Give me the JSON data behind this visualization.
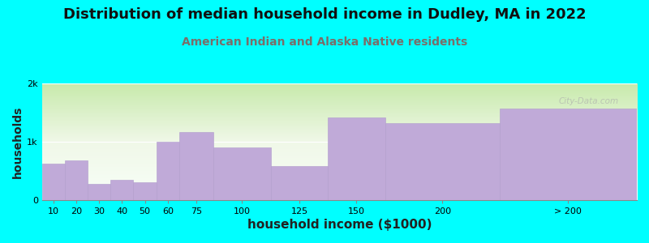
{
  "title": "Distribution of median household income in Dudley, MA in 2022",
  "subtitle": "American Indian and Alaska Native residents",
  "xlabel": "household income ($1000)",
  "ylabel": "households",
  "background_color": "#00ffff",
  "bar_color": "#c0aad8",
  "bar_edge_color": "#b09ccc",
  "subtitle_color": "#7a6e6a",
  "categories": [
    "10",
    "20",
    "30",
    "40",
    "50",
    "60",
    "75",
    "100",
    "125",
    "150",
    "200",
    "> 200"
  ],
  "values": [
    620,
    680,
    280,
    340,
    310,
    1000,
    1170,
    900,
    580,
    1420,
    1320,
    1570
  ],
  "bar_lefts": [
    0,
    10,
    20,
    30,
    40,
    50,
    60,
    75,
    100,
    125,
    150,
    200
  ],
  "bar_widths": [
    10,
    10,
    10,
    10,
    10,
    10,
    15,
    25,
    25,
    25,
    50,
    60
  ],
  "xtick_pos": [
    5,
    15,
    25,
    35,
    45,
    55,
    67.5,
    87.5,
    112.5,
    137.5,
    175,
    230
  ],
  "xtick_labels": [
    "10",
    "20",
    "30",
    "40",
    "50",
    "60",
    "75",
    "100",
    "125",
    "150",
    "200",
    "> 200"
  ],
  "ylim": [
    0,
    2000
  ],
  "ytick_vals": [
    0,
    1000,
    2000
  ],
  "ytick_labels": [
    "0",
    "1k",
    "2k"
  ],
  "xlim": [
    0,
    260
  ],
  "watermark": "City-Data.com",
  "title_fontsize": 13,
  "subtitle_fontsize": 10,
  "xlabel_fontsize": 11,
  "ylabel_fontsize": 10,
  "tick_fontsize": 8
}
